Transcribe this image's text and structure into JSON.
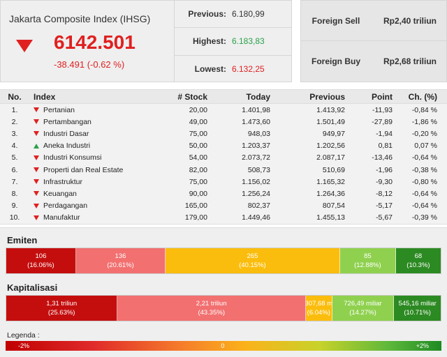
{
  "ihsg": {
    "title": "Jakarta Composite Index (IHSG)",
    "value": "6142.501",
    "change": "-38.491 (-0.62 %)",
    "direction": "down"
  },
  "stats": {
    "previous_label": "Previous:",
    "previous_value": "6.180,99",
    "highest_label": "Highest:",
    "highest_value": "6.183,83",
    "lowest_label": "Lowest:",
    "lowest_value": "6.132,25"
  },
  "foreign": {
    "sell_label": "Foreign Sell",
    "sell_value": "Rp2,40 triliun",
    "buy_label": "Foreign Buy",
    "buy_value": "Rp2,68 triliun"
  },
  "table": {
    "headers": [
      "No.",
      "Index",
      "# Stock",
      "Today",
      "Previous",
      "Point",
      "Ch. (%)"
    ],
    "rows": [
      {
        "no": "1.",
        "dir": "down",
        "index": "Pertanian",
        "stock": "20,00",
        "today": "1.401,98",
        "previous": "1.413,92",
        "point": "-11,93",
        "ch": "-0,84 %"
      },
      {
        "no": "2.",
        "dir": "down",
        "index": "Pertambangan",
        "stock": "49,00",
        "today": "1.473,60",
        "previous": "1.501,49",
        "point": "-27,89",
        "ch": "-1,86 %"
      },
      {
        "no": "3.",
        "dir": "down",
        "index": "Industri Dasar",
        "stock": "75,00",
        "today": "948,03",
        "previous": "949,97",
        "point": "-1,94",
        "ch": "-0,20 %"
      },
      {
        "no": "4.",
        "dir": "up",
        "index": "Aneka Industri",
        "stock": "50,00",
        "today": "1.203,37",
        "previous": "1.202,56",
        "point": "0,81",
        "ch": "0,07 %"
      },
      {
        "no": "5.",
        "dir": "down",
        "index": "Industri Konsumsi",
        "stock": "54,00",
        "today": "2.073,72",
        "previous": "2.087,17",
        "point": "-13,46",
        "ch": "-0,64 %"
      },
      {
        "no": "6.",
        "dir": "down",
        "index": "Properti dan Real Estate",
        "stock": "82,00",
        "today": "508,73",
        "previous": "510,69",
        "point": "-1,96",
        "ch": "-0,38 %"
      },
      {
        "no": "7.",
        "dir": "down",
        "index": "Infrastruktur",
        "stock": "75,00",
        "today": "1.156,02",
        "previous": "1.165,32",
        "point": "-9,30",
        "ch": "-0,80 %"
      },
      {
        "no": "8.",
        "dir": "down",
        "index": "Keuangan",
        "stock": "90,00",
        "today": "1.256,24",
        "previous": "1.264,36",
        "point": "-8,12",
        "ch": "-0,64 %"
      },
      {
        "no": "9.",
        "dir": "down",
        "index": "Perdagangan",
        "stock": "165,00",
        "today": "802,37",
        "previous": "807,54",
        "point": "-5,17",
        "ch": "-0,64 %"
      },
      {
        "no": "10.",
        "dir": "down",
        "index": "Manufaktur",
        "stock": "179,00",
        "today": "1.449,46",
        "previous": "1.455,13",
        "point": "-5,67",
        "ch": "-0,39 %"
      }
    ]
  },
  "emiten": {
    "title": "Emiten",
    "segments": [
      {
        "line1": "106",
        "line2": "(16.06%)",
        "share": 16.06,
        "color": "#c40e0e"
      },
      {
        "line1": "136",
        "line2": "(20.61%)",
        "share": 20.61,
        "color": "#f27070"
      },
      {
        "line1": "265",
        "line2": "(40.15%)",
        "share": 40.15,
        "color": "#fbbd0d"
      },
      {
        "line1": "85",
        "line2": "(12.88%)",
        "share": 12.88,
        "color": "#8fd14f"
      },
      {
        "line1": "68",
        "line2": "(10.3%)",
        "share": 10.3,
        "color": "#2c8a22"
      }
    ]
  },
  "kapitalisasi": {
    "title": "Kapitalisasi",
    "segments": [
      {
        "line1": "1,31 triliun",
        "line2": "(25.63%)",
        "share": 25.63,
        "color": "#c40e0e"
      },
      {
        "line1": "2,21 triliun",
        "line2": "(43.35%)",
        "share": 43.35,
        "color": "#f27070"
      },
      {
        "line1": "307,68 m",
        "line2": "(6.04%)",
        "share": 6.04,
        "color": "#fbbd0d"
      },
      {
        "line1": "726,49 miliar",
        "line2": "(14.27%)",
        "share": 14.27,
        "color": "#8fd14f"
      },
      {
        "line1": "545,16 miliar",
        "line2": "(10.71%)",
        "share": 10.71,
        "color": "#2c8a22"
      }
    ]
  },
  "legend": {
    "label": "Legenda :",
    "min": "-2%",
    "mid": "0",
    "max": "+2%"
  },
  "colors": {
    "down": "#e02020",
    "up": "#2aa14a"
  }
}
